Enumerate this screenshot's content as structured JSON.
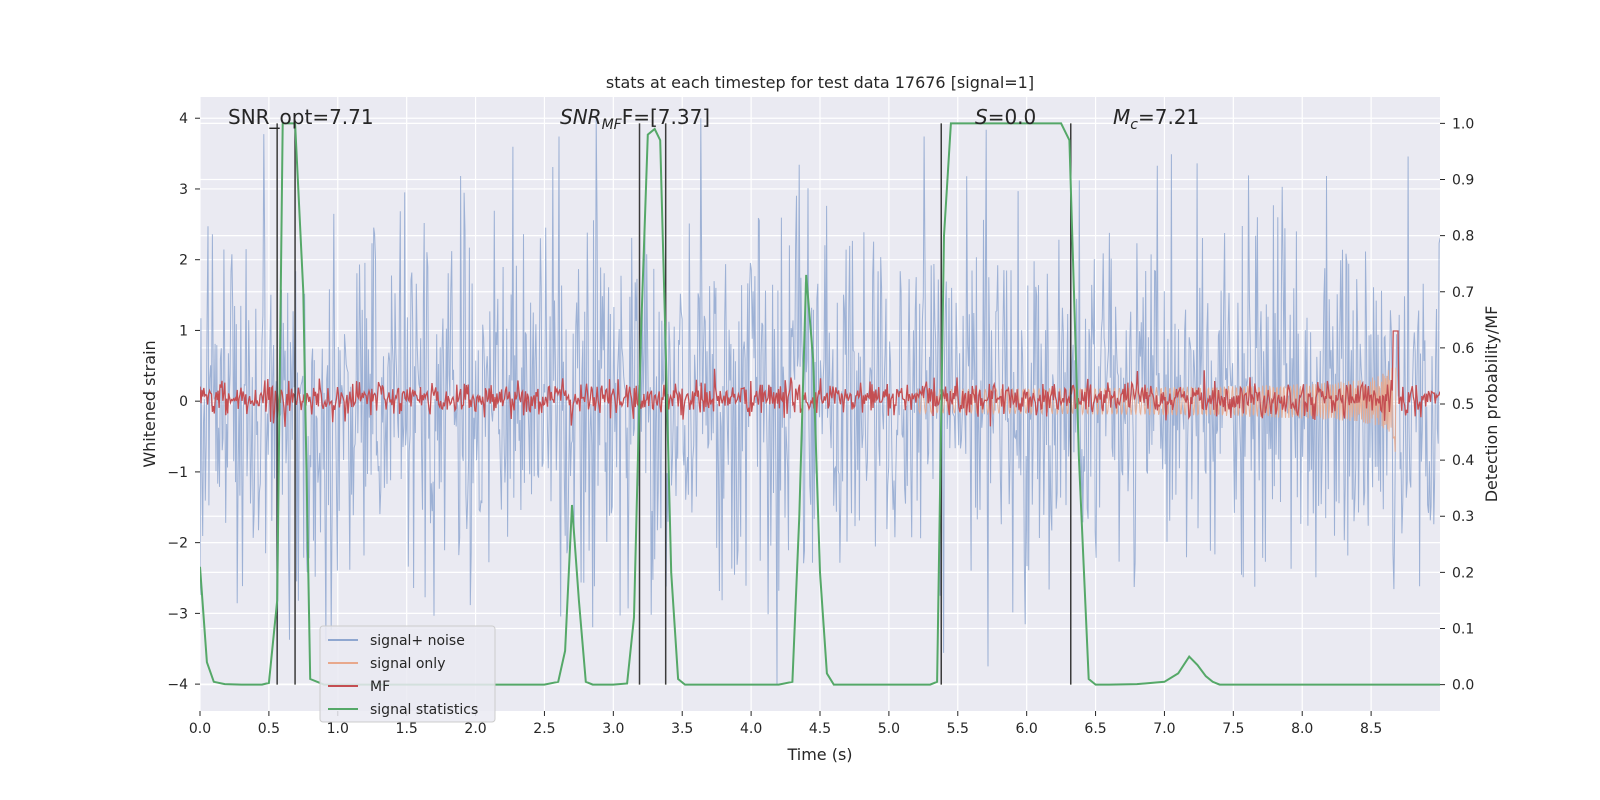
{
  "chart_data": {
    "type": "line",
    "title": "stats at each timestep for test data 17676 [signal=1]",
    "xlabel": "Time (s)",
    "ylabel_left": "Whitened strain",
    "ylabel_right": "Detection probability/MF",
    "xlim": [
      0.0,
      9.0
    ],
    "ylim_left": [
      -4.38,
      4.3
    ],
    "ylim_right": [
      -0.047,
      1.047
    ],
    "xticks": [
      "0.0",
      "0.5",
      "1.0",
      "1.5",
      "2.0",
      "2.5",
      "3.0",
      "3.5",
      "4.0",
      "4.5",
      "5.0",
      "5.5",
      "6.0",
      "6.5",
      "7.0",
      "7.5",
      "8.0",
      "8.5"
    ],
    "yticks_left": [
      "4",
      "3",
      "2",
      "1",
      "0",
      "−1",
      "−2",
      "−3",
      "−4"
    ],
    "yticks_right": [
      "1.0",
      "0.9",
      "0.8",
      "0.7",
      "0.6",
      "0.5",
      "0.4",
      "0.3",
      "0.2",
      "0.1",
      "0.0"
    ],
    "annotations": {
      "snr_opt": "SNR_opt=7.71",
      "snr_mf_main": "SNR",
      "snr_mf_sub": "MF",
      "snr_mf_value": "F=[7.37]",
      "s_label": "S",
      "s_value": "=0.0",
      "mc_main": "M",
      "mc_sub": "c",
      "mc_value": "=7.21"
    },
    "legend": [
      "signal+ noise",
      "signal only",
      "MF",
      "signal statistics"
    ],
    "colors": {
      "signal_noise": "#8fa7d0",
      "signal_only": "#e8a88c",
      "mf": "#c44e52",
      "signal_statistics": "#55a868",
      "vlines": "#3b3b3b",
      "background": "#eaeaf2"
    },
    "vertical_lines": [
      0.56,
      0.69,
      3.19,
      3.38,
      5.38,
      6.32
    ],
    "signal_statistics": {
      "x": [
        0.0,
        0.05,
        0.1,
        0.18,
        0.3,
        0.45,
        0.5,
        0.56,
        0.6,
        0.64,
        0.69,
        0.75,
        0.8,
        0.9,
        1.1,
        1.5,
        2.0,
        2.5,
        2.6,
        2.65,
        2.7,
        2.75,
        2.8,
        2.85,
        2.9,
        3.0,
        3.1,
        3.15,
        3.2,
        3.25,
        3.3,
        3.34,
        3.38,
        3.42,
        3.47,
        3.52,
        3.6,
        3.8,
        4.0,
        4.2,
        4.3,
        4.35,
        4.4,
        4.45,
        4.5,
        4.55,
        4.6,
        4.7,
        5.0,
        5.3,
        5.35,
        5.4,
        5.45,
        5.5,
        6.0,
        6.25,
        6.31,
        6.38,
        6.45,
        6.5,
        6.6,
        6.8,
        7.0,
        7.1,
        7.18,
        7.24,
        7.3,
        7.35,
        7.4,
        7.5,
        8.0,
        8.5,
        9.0
      ],
      "y": [
        0.21,
        0.04,
        0.005,
        0.001,
        0.0,
        0.0,
        0.003,
        0.15,
        1.0,
        1.0,
        1.0,
        0.7,
        0.01,
        0.0,
        0.0,
        0.0,
        0.0,
        0.0,
        0.005,
        0.06,
        0.32,
        0.15,
        0.005,
        0.0,
        0.0,
        0.0,
        0.002,
        0.12,
        0.62,
        0.98,
        0.99,
        0.97,
        0.6,
        0.2,
        0.01,
        0.0,
        0.0,
        0.0,
        0.0,
        0.0,
        0.005,
        0.3,
        0.73,
        0.58,
        0.2,
        0.02,
        0.0,
        0.0,
        0.0,
        0.0,
        0.005,
        0.8,
        1.0,
        1.0,
        1.0,
        1.0,
        0.97,
        0.4,
        0.01,
        0.0,
        0.0,
        0.001,
        0.005,
        0.02,
        0.05,
        0.035,
        0.015,
        0.005,
        0.0,
        0.0,
        0.0,
        0.0,
        0.0
      ]
    },
    "signal_only": {
      "x_start": 5.2,
      "x_peak": 8.68,
      "peak_amplitude": 0.9
    },
    "signal_plus_noise": {
      "sigma": 1.25,
      "range": [
        -4.0,
        4.0
      ]
    },
    "mf": {
      "baseline_right_axis": 0.51,
      "noise_amplitude": 0.015,
      "peak_x": 8.68,
      "peak_value": 0.63
    }
  }
}
